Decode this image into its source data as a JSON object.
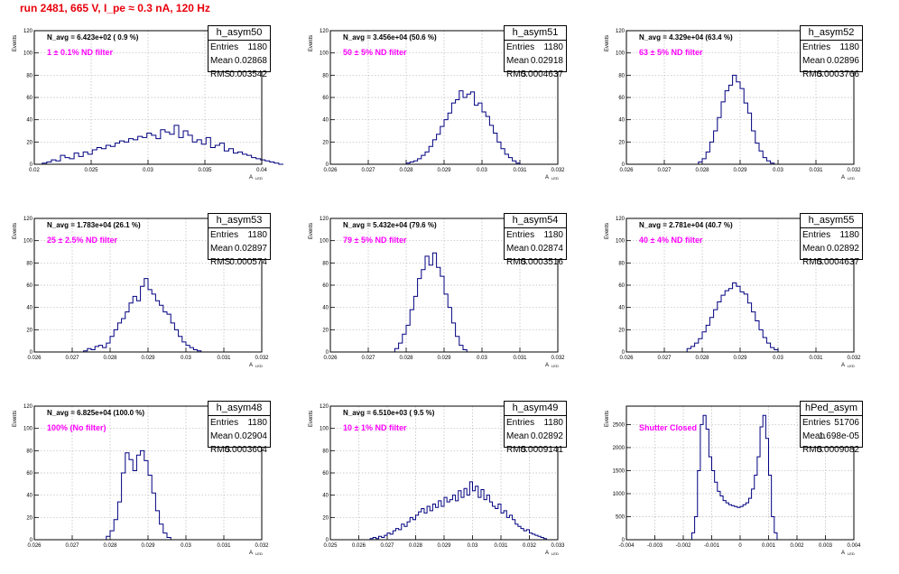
{
  "page_title": "run 2481,   665 V, I_pe ≈ 0.3 nA, 120 Hz",
  "stat_labels": {
    "entries": "Entries",
    "mean": "Mean",
    "rms": "RMS"
  },
  "ylabel": "Events",
  "xlabel_main": "A",
  "xlabel_sub": "LED",
  "colors": {
    "title": "#e8000b",
    "histogram": "#000080",
    "annotation": "#ff00ff"
  },
  "chart_data": [
    {
      "type": "histogram",
      "name": "h_asym50",
      "navg": "N_avg = 6.423e+02 ( 0.9 %)",
      "filter": "1 ± 0.1% ND filter",
      "entries": "1180",
      "mean": "0.02868",
      "rms": "0.003542",
      "xlim": [
        0.02,
        0.04
      ],
      "ylim": [
        0,
        120
      ],
      "xticks": [
        "0.02",
        "0.025",
        "0.03",
        "0.035",
        "0.04"
      ],
      "yticks": [
        "0",
        "20",
        "40",
        "60",
        "80",
        "100",
        "120"
      ],
      "x_start": 0.0203,
      "bin_width": 0.0004,
      "counts": [
        0,
        1,
        2,
        4,
        3,
        8,
        6,
        5,
        10,
        7,
        11,
        9,
        13,
        15,
        14,
        17,
        16,
        19,
        21,
        20,
        23,
        22,
        25,
        24,
        28,
        26,
        23,
        31,
        29,
        27,
        35,
        24,
        30,
        26,
        20,
        22,
        18,
        24,
        15,
        17,
        19,
        12,
        14,
        10,
        11,
        9,
        8,
        6,
        5,
        4,
        3,
        2,
        1,
        0
      ]
    },
    {
      "type": "histogram",
      "name": "h_asym51",
      "navg": "N_avg = 3.456e+04 (50.6 %)",
      "filter": "50 ± 5% ND filter",
      "entries": "1180",
      "mean": "0.02918",
      "rms": "0.0004637",
      "xlim": [
        0.026,
        0.032
      ],
      "ylim": [
        0,
        120
      ],
      "xticks": [
        "0.026",
        "0.027",
        "0.028",
        "0.029",
        "0.03",
        "0.031",
        "0.032"
      ],
      "yticks": [
        "0",
        "20",
        "40",
        "60",
        "80",
        "100",
        "120"
      ],
      "x_start": 0.0279,
      "bin_width": 0.0001,
      "counts": [
        0,
        1,
        2,
        3,
        5,
        8,
        11,
        16,
        22,
        27,
        34,
        40,
        46,
        55,
        58,
        66,
        60,
        63,
        65,
        53,
        55,
        47,
        43,
        35,
        28,
        20,
        14,
        9,
        6,
        3,
        1,
        0
      ]
    },
    {
      "type": "histogram",
      "name": "h_asym52",
      "navg": "N_avg = 4.329e+04 (63.4 %)",
      "filter": "63 ± 5% ND filter",
      "entries": "1180",
      "mean": "0.02896",
      "rms": "0.0003766",
      "xlim": [
        0.026,
        0.032
      ],
      "ylim": [
        0,
        120
      ],
      "xticks": [
        "0.026",
        "0.027",
        "0.028",
        "0.029",
        "0.03",
        "0.031",
        "0.032"
      ],
      "yticks": [
        "0",
        "20",
        "40",
        "60",
        "80",
        "100",
        "120"
      ],
      "x_start": 0.0278,
      "bin_width": 0.0001,
      "counts": [
        0,
        2,
        5,
        11,
        20,
        30,
        42,
        56,
        66,
        71,
        80,
        74,
        68,
        55,
        46,
        30,
        19,
        12,
        6,
        3,
        1,
        0
      ]
    },
    {
      "type": "histogram",
      "name": "h_asym53",
      "navg": "N_avg = 1.783e+04 (26.1 %)",
      "filter": "25 ± 2.5% ND filter",
      "entries": "1180",
      "mean": "0.02897",
      "rms": "0.000574",
      "xlim": [
        0.026,
        0.032
      ],
      "ylim": [
        0,
        120
      ],
      "xticks": [
        "0.026",
        "0.027",
        "0.028",
        "0.029",
        "0.03",
        "0.031",
        "0.032"
      ],
      "yticks": [
        "0",
        "20",
        "40",
        "60",
        "80",
        "100",
        "120"
      ],
      "x_start": 0.0272,
      "bin_width": 0.0001,
      "counts": [
        0,
        1,
        3,
        2,
        5,
        6,
        4,
        8,
        14,
        20,
        26,
        30,
        36,
        44,
        50,
        46,
        59,
        66,
        56,
        52,
        46,
        42,
        36,
        34,
        26,
        20,
        14,
        9,
        6,
        4,
        2,
        1,
        0
      ]
    },
    {
      "type": "histogram",
      "name": "h_asym54",
      "navg": "N_avg = 5.432e+04 (79.6 %)",
      "filter": "79 ± 5% ND filter",
      "entries": "1180",
      "mean": "0.02874",
      "rms": "0.0003516",
      "xlim": [
        0.026,
        0.032
      ],
      "ylim": [
        0,
        120
      ],
      "xticks": [
        "0.026",
        "0.027",
        "0.028",
        "0.029",
        "0.03",
        "0.031",
        "0.032"
      ],
      "yticks": [
        "0",
        "20",
        "40",
        "60",
        "80",
        "100",
        "120"
      ],
      "x_start": 0.0276,
      "bin_width": 0.0001,
      "counts": [
        0,
        3,
        8,
        16,
        24,
        38,
        50,
        66,
        74,
        86,
        78,
        89,
        76,
        68,
        52,
        40,
        26,
        14,
        6,
        2,
        0
      ]
    },
    {
      "type": "histogram",
      "name": "h_asym55",
      "navg": "N_avg = 2.781e+04 (40.7 %)",
      "filter": "40 ± 4% ND filter",
      "entries": "1180",
      "mean": "0.02892",
      "rms": "0.0004637",
      "xlim": [
        0.026,
        0.032
      ],
      "ylim": [
        0,
        120
      ],
      "xticks": [
        "0.026",
        "0.027",
        "0.028",
        "0.029",
        "0.03",
        "0.031",
        "0.032"
      ],
      "yticks": [
        "0",
        "20",
        "40",
        "60",
        "80",
        "100",
        "120"
      ],
      "x_start": 0.0275,
      "bin_width": 0.0001,
      "counts": [
        0,
        3,
        5,
        8,
        12,
        18,
        24,
        31,
        38,
        45,
        51,
        55,
        57,
        62,
        59,
        54,
        52,
        44,
        36,
        28,
        20,
        13,
        8,
        4,
        2,
        0
      ]
    },
    {
      "type": "histogram",
      "name": "h_asym48",
      "navg": "N_avg = 6.825e+04 (100.0 %)",
      "filter": "100% (No filter)",
      "entries": "1180",
      "mean": "0.02904",
      "rms": "0.0003604",
      "xlim": [
        0.026,
        0.032
      ],
      "ylim": [
        0,
        120
      ],
      "xticks": [
        "0.026",
        "0.027",
        "0.028",
        "0.029",
        "0.03",
        "0.031",
        "0.032"
      ],
      "yticks": [
        "0",
        "20",
        "40",
        "60",
        "80",
        "100",
        "120"
      ],
      "x_start": 0.0278,
      "bin_width": 0.0001,
      "counts": [
        0,
        3,
        8,
        18,
        34,
        60,
        78,
        72,
        62,
        76,
        80,
        71,
        58,
        42,
        26,
        14,
        6,
        2,
        0
      ]
    },
    {
      "type": "histogram",
      "name": "h_asym49",
      "navg": "N_avg = 6.510e+03 ( 9.5 %)",
      "filter": "10 ± 1% ND filter",
      "entries": "1180",
      "mean": "0.02892",
      "rms": "0.0009141",
      "xlim": [
        0.025,
        0.033
      ],
      "ylim": [
        0,
        120
      ],
      "xticks": [
        "0.025",
        "0.026",
        "0.027",
        "0.028",
        "0.029",
        "0.03",
        "0.031",
        "0.032",
        "0.033"
      ],
      "yticks": [
        "0",
        "20",
        "40",
        "60",
        "80",
        "100",
        "120"
      ],
      "x_start": 0.0263,
      "bin_width": 0.0001,
      "counts": [
        0,
        1,
        2,
        1,
        3,
        2,
        4,
        6,
        5,
        8,
        10,
        9,
        14,
        12,
        16,
        20,
        18,
        22,
        25,
        28,
        24,
        30,
        26,
        32,
        29,
        35,
        30,
        38,
        34,
        36,
        40,
        35,
        44,
        38,
        46,
        40,
        52,
        44,
        48,
        38,
        45,
        36,
        40,
        34,
        30,
        28,
        32,
        24,
        26,
        20,
        22,
        18,
        14,
        12,
        10,
        8,
        9,
        6,
        5,
        4,
        3,
        2,
        1,
        0
      ]
    },
    {
      "type": "histogram",
      "name": "hPed_asym",
      "navg": "",
      "filter": "Shutter Closed",
      "entries": "51706",
      "mean": "1.698e-05",
      "rms": "0.0009082",
      "xlim": [
        -0.004,
        0.004
      ],
      "ylim": [
        0,
        2900
      ],
      "xticks": [
        "-0.004",
        "-0.003",
        "-0.002",
        "-0.001",
        "0",
        "0.001",
        "0.002",
        "0.003",
        "0.004"
      ],
      "yticks": [
        "0",
        "500",
        "1000",
        "1500",
        "2000",
        "2500"
      ],
      "x_start": -0.0018,
      "bin_width": 0.0001,
      "counts": [
        0,
        150,
        500,
        1500,
        2500,
        2700,
        2400,
        1800,
        1500,
        1250,
        1050,
        950,
        850,
        800,
        760,
        740,
        720,
        700,
        720,
        760,
        800,
        900,
        1100,
        1400,
        1800,
        2450,
        2700,
        2200,
        1400,
        500,
        150,
        0
      ]
    }
  ]
}
